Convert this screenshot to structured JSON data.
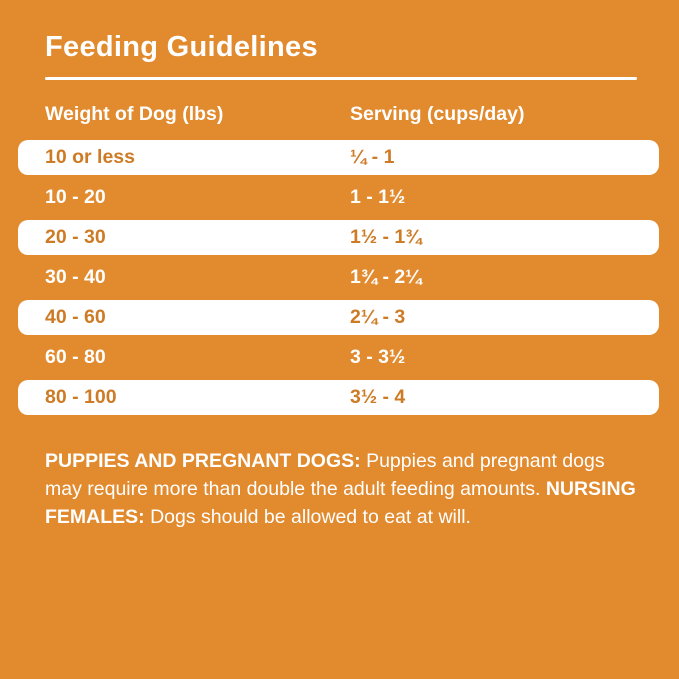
{
  "page": {
    "title": "Feeding Guidelines",
    "colors": {
      "background": "#E18A2E",
      "highlight_row_background": "#FFFFFF",
      "highlight_row_text": "#CD7B25",
      "default_text": "#FFFFFF"
    }
  },
  "table": {
    "headers": [
      "Weight of Dog (lbs)",
      "Serving (cups/day)"
    ],
    "rows": [
      {
        "weight": "10 or less",
        "serving": "¼ - 1",
        "highlight": true
      },
      {
        "weight": "10 - 20",
        "serving": "1 - 1½",
        "highlight": false
      },
      {
        "weight": "20 - 30",
        "serving": "1½ - 1¾",
        "highlight": true
      },
      {
        "weight": "30 - 40",
        "serving": "1¾ - 2¼",
        "highlight": false
      },
      {
        "weight": "40 - 60",
        "serving": "2¼ - 3",
        "highlight": true
      },
      {
        "weight": "60 - 80",
        "serving": "3 - 3½",
        "highlight": false
      },
      {
        "weight": "80 - 100",
        "serving": "3½ - 4",
        "highlight": true
      }
    ]
  },
  "note": {
    "segments": [
      {
        "text": "PUPPIES AND PREGNANT DOGS:",
        "bold": true
      },
      {
        "text": " Puppies and pregnant dogs may require more than double the adult feeding amounts. ",
        "bold": false
      },
      {
        "text": "NURSING FEMALES:",
        "bold": true
      },
      {
        "text": " Dogs should be allowed to eat at will.",
        "bold": false
      }
    ]
  }
}
